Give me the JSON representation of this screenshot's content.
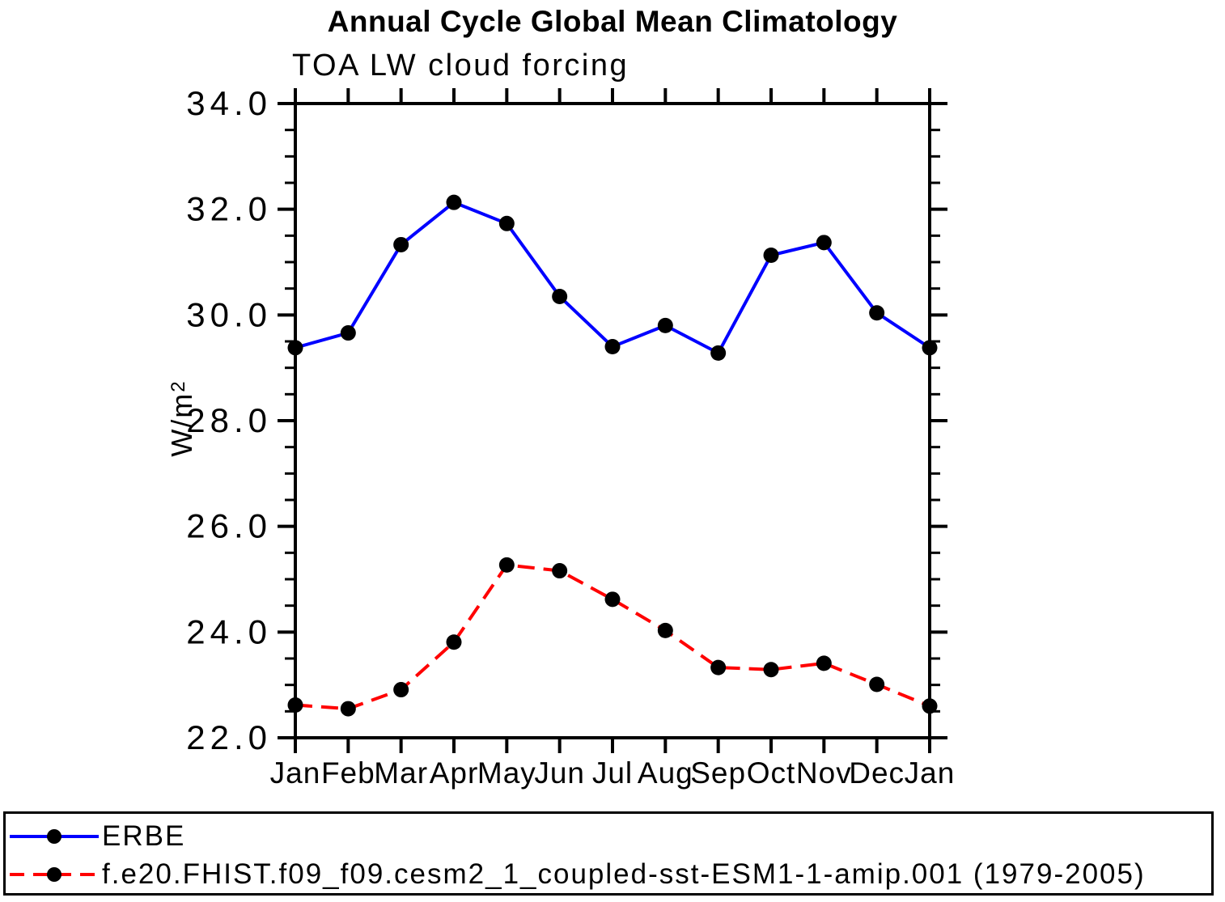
{
  "title": "Annual Cycle Global Mean Climatology",
  "subtitle": "TOA LW cloud forcing",
  "y_axis_label_base": "W/m",
  "y_axis_label_sup": "2",
  "colors": {
    "background": "#ffffff",
    "axis": "#000000",
    "marker": "#000000",
    "series_blue": "#0000ff",
    "series_red": "#ff0000"
  },
  "legend": {
    "items": [
      {
        "label": "ERBE",
        "color": "#0000ff",
        "line_style": "solid",
        "marker": "black-dot"
      },
      {
        "label": "f.e20.FHIST.f09_f09.cesm2_1_coupled-sst-ESM1-1-amip.001 (1979-2005)",
        "color": "#ff0000",
        "line_style": "dashed",
        "marker": "black-dot"
      }
    ]
  },
  "chart_data": {
    "type": "line",
    "title": "Annual Cycle Global Mean Climatology",
    "subtitle": "TOA LW cloud forcing",
    "xlabel": "",
    "ylabel": "W/m²",
    "categories": [
      "Jan",
      "Feb",
      "Mar",
      "Apr",
      "May",
      "Jun",
      "Jul",
      "Aug",
      "Sep",
      "Oct",
      "Nov",
      "Dec",
      "Jan"
    ],
    "ylim": [
      22.0,
      34.0
    ],
    "y_major_tick_values": [
      22,
      24,
      26,
      28,
      30,
      32,
      34
    ],
    "y_major_tick_labels": [
      "22.0",
      "24.0",
      "26.0",
      "28.0",
      "30.0",
      "32.0",
      "34.0"
    ],
    "y_minor_tick_step": 0.5,
    "grid": "off",
    "legend_position": "bottom-outside-box",
    "ticks": "outward-all-four-sides",
    "series": [
      {
        "name": "ERBE",
        "color": "#0000ff",
        "line_style": "solid",
        "marker": "circle",
        "marker_color": "#000000",
        "values": [
          29.38,
          29.66,
          31.33,
          32.13,
          31.73,
          30.35,
          29.4,
          29.8,
          29.28,
          31.13,
          31.37,
          30.04,
          29.38
        ]
      },
      {
        "name": "f.e20.FHIST.f09_f09.cesm2_1_coupled-sst-ESM1-1-amip.001 (1979-2005)",
        "color": "#ff0000",
        "line_style": "dashed",
        "marker": "circle",
        "marker_color": "#000000",
        "values": [
          22.62,
          22.55,
          22.91,
          23.81,
          25.27,
          25.16,
          24.62,
          24.03,
          23.33,
          23.29,
          23.41,
          23.01,
          22.6
        ]
      }
    ]
  }
}
